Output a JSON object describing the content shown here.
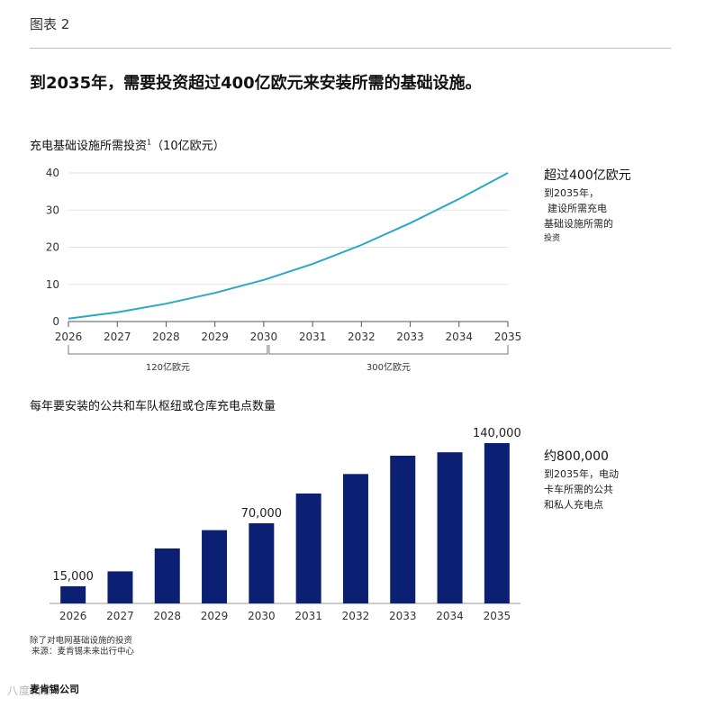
{
  "figure_label": "图表 2",
  "headline": "到2035年，需要投资超过400亿欧元来安装所需的基础设施。",
  "line_section": {
    "title": "充电基础设施所需投资",
    "footnote_mark": "1",
    "unit": "（10亿欧元）",
    "side_heading": "超过400亿欧元",
    "side_lines": [
      "到2035年，",
      "建设所需充电",
      "基础设施所需的",
      "投资"
    ],
    "bracket_left_label": "120亿欧元",
    "bracket_right_label": "300亿欧元"
  },
  "bar_section": {
    "title": "每年要安装的公共和车队枢纽或仓库充电点数量",
    "side_heading": "约800,000",
    "side_lines": [
      "到2035年，电动",
      "卡车所需的公共",
      "和私人充电点"
    ]
  },
  "chart_data": [
    {
      "type": "line",
      "x": [
        2026,
        2027,
        2028,
        2029,
        2030,
        2031,
        2032,
        2033,
        2034,
        2035
      ],
      "series": [
        {
          "values": [
            0.8,
            2.5,
            4.8,
            7.7,
            11.2,
            15.5,
            20.6,
            26.5,
            33.0,
            40.0
          ],
          "color": "#29a9c2"
        }
      ],
      "xticks": [
        "2026",
        "2027",
        "2028",
        "2029",
        "2030",
        "2031",
        "2032",
        "2033",
        "2034",
        "2035"
      ],
      "yticks": [
        "0",
        "10",
        "20",
        "30",
        "40"
      ],
      "ylim": [
        0,
        40
      ],
      "grid": true
    },
    {
      "type": "bar",
      "categories": [
        "2026",
        "2027",
        "2028",
        "2029",
        "2030",
        "2031",
        "2032",
        "2033",
        "2034",
        "2035"
      ],
      "values": [
        15000,
        28000,
        48000,
        64000,
        70000,
        96000,
        113000,
        129000,
        132000,
        140000
      ],
      "labels": [
        "15,000",
        "",
        "",
        "",
        "70,000",
        "",
        "",
        "",
        "",
        "140,000"
      ],
      "color": "#0b1f73",
      "ylim": [
        0,
        140000
      ]
    }
  ],
  "source_lines": [
    "除了对电网基础设施的投资",
    "来源：麦肯锡未来出行中心"
  ],
  "logo": "麦肯锡公司",
  "watermark": "八度精读"
}
